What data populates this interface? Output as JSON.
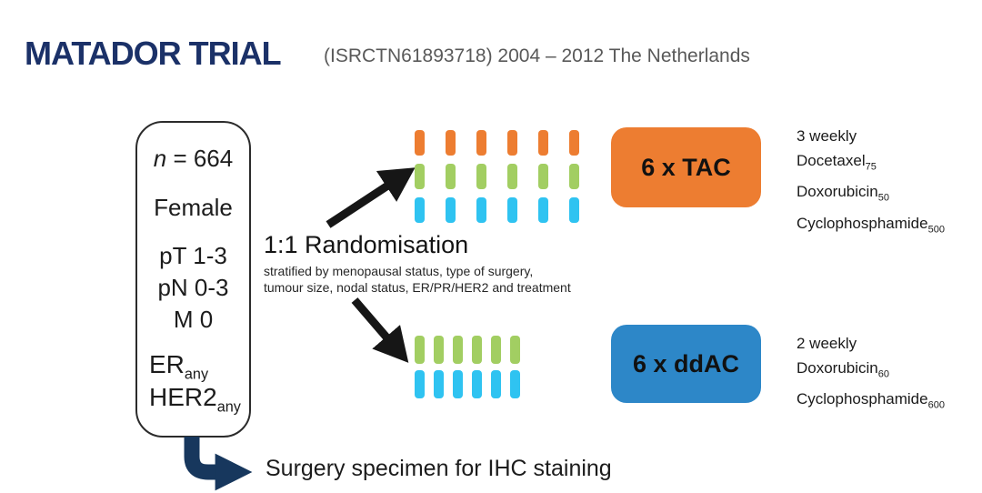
{
  "header": {
    "title": "MATADOR TRIAL",
    "subtitle": "(ISRCTN61893718) 2004 – 2012 The Netherlands"
  },
  "patient_box": {
    "n_italic": "n",
    "n_rest": " = 664",
    "sex": "Female",
    "pt": "pT 1-3",
    "pn": "pN 0-3",
    "m": "M 0",
    "er_base": "ER",
    "er_sub": "any",
    "her2_base": "HER2",
    "her2_sub": "any"
  },
  "randomisation": {
    "title": "1:1 Randomisation",
    "stratified_line1": "stratified by menopausal status, type of surgery,",
    "stratified_line2": "tumour size, nodal status, ER/PR/HER2 and treatment"
  },
  "arms": {
    "tac": {
      "label": "6 x TAC",
      "box_color": "#ED7D31",
      "schedule": "3 weekly",
      "drugs": [
        {
          "name": "Docetaxel",
          "dose": "75"
        },
        {
          "name": "Doxorubicin",
          "dose": "50"
        },
        {
          "name": "Cyclophosphamide",
          "dose": "500"
        }
      ],
      "tick_rows": [
        {
          "color": "orange",
          "count": 6
        },
        {
          "color": "green",
          "count": 6
        },
        {
          "color": "cyan",
          "count": 6
        }
      ]
    },
    "ddac": {
      "label": "6 x ddAC",
      "box_color": "#2D87C8",
      "schedule": "2 weekly",
      "drugs": [
        {
          "name": "Doxorubicin",
          "dose": "60"
        },
        {
          "name": "Cyclophosphamide",
          "dose": "600"
        }
      ],
      "tick_rows": [
        {
          "color": "green",
          "count": 6
        },
        {
          "color": "cyan",
          "count": 6
        }
      ]
    }
  },
  "footer": {
    "surgery_note": "Surgery specimen for IHC staining"
  },
  "colors": {
    "navy_title": "#1B3168",
    "navy_arrow": "#17375D",
    "arrow_black": "#161616",
    "orange": "#ED7D31",
    "green": "#A2CE62",
    "cyan": "#2FC3F1",
    "blue": "#2D87C8",
    "gray": "#595959"
  }
}
